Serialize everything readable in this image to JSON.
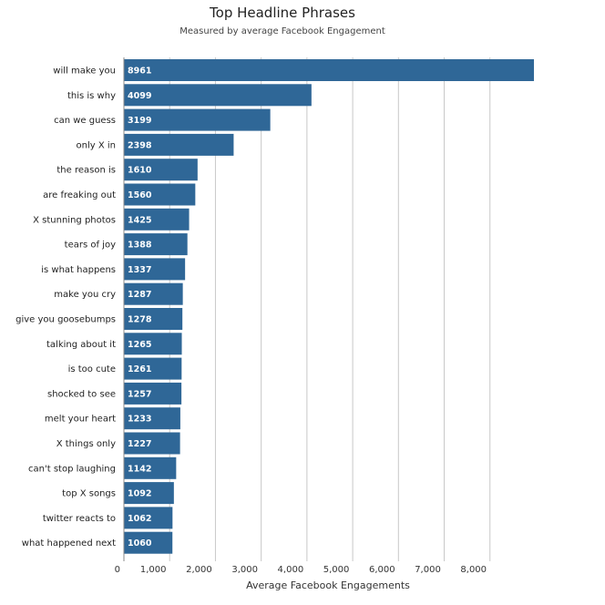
{
  "chart_data": {
    "type": "bar",
    "orientation": "horizontal",
    "title": "Top Headline Phrases",
    "subtitle": "Measured by average Facebook Engagement",
    "xlabel": "Average Facebook Engagements",
    "ylabel": "",
    "xlim": [
      0,
      9000
    ],
    "ticks": [
      0,
      1000,
      2000,
      3000,
      4000,
      5000,
      6000,
      7000,
      8000
    ],
    "tick_labels": [
      "0",
      "1,000",
      "2,000",
      "3,000",
      "4,000",
      "5,000",
      "6,000",
      "7,000",
      "8,000"
    ],
    "grid": true,
    "bar_color": "#2f6797",
    "categories": [
      "will make you",
      "this is why",
      "can we guess",
      "only X in",
      "the reason is",
      "are freaking out",
      "X stunning photos",
      "tears of joy",
      "is what happens",
      "make you cry",
      "give you goosebumps",
      "talking about it",
      "is too cute",
      "shocked to see",
      "melt your heart",
      "X things only",
      "can't stop laughing",
      "top X songs",
      "twitter reacts to",
      "what happened next"
    ],
    "values": [
      8961,
      4099,
      3199,
      2398,
      1610,
      1560,
      1425,
      1388,
      1337,
      1287,
      1278,
      1265,
      1261,
      1257,
      1233,
      1227,
      1142,
      1092,
      1062,
      1060
    ]
  }
}
